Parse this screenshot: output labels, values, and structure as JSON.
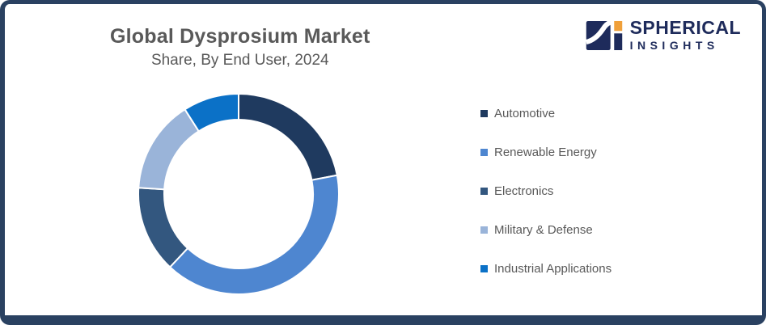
{
  "frame": {
    "border_color": "#2A4161",
    "background": "#FFFFFF"
  },
  "header": {
    "title": "Global Dysprosium Market",
    "subtitle": "Share, By End User, 2024",
    "text_color": "#595959"
  },
  "logo": {
    "name": "SPHERICAL",
    "tagline": "INSIGHTS",
    "icon": "spherical-insights-logo",
    "text_color": "#1E2B5B",
    "accent_color": "#F0A03A"
  },
  "chart_data": {
    "type": "pie",
    "subtype": "donut",
    "title": "Global Dysprosium Market Share, By End User, 2024",
    "categories": [
      "Automotive",
      "Renewable Energy",
      "Electronics",
      "Military & Defense",
      "Industrial Applications"
    ],
    "values": [
      22,
      40,
      14,
      15,
      9
    ],
    "unit": "%",
    "colors": [
      "#1F3A5F",
      "#4E86D0",
      "#33577F",
      "#9AB4D9",
      "#0B71C7"
    ],
    "start_angle_deg": 0,
    "clockwise": true,
    "inner_radius_ratio": 0.742,
    "outer_radius_px": 124,
    "segment_gap_color": "#FFFFFF",
    "legend_position": "right",
    "data_labels": false
  }
}
